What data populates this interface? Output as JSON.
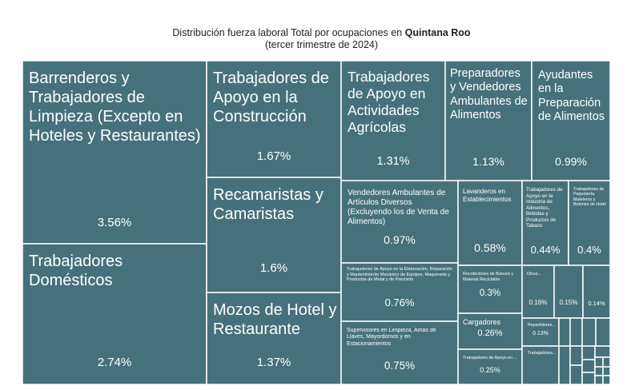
{
  "title": {
    "prefix": "Distribución fuerza laboral Total por ocupaciones en ",
    "location": "Quintana Roo",
    "subtitle": "(tercer trimestre de 2024)"
  },
  "chart_data": {
    "type": "treemap",
    "color": "#46717c",
    "unit": "%",
    "items": [
      {
        "id": "barrenderos",
        "label": "Barrenderos y Trabajadores de Limpieza (Excepto en Hoteles y Restaurantes)",
        "value": 3.56,
        "value_text": "3.56%"
      },
      {
        "id": "domesticos",
        "label": "Trabajadores Domésticos",
        "value": 2.74,
        "value_text": "2.74%"
      },
      {
        "id": "construccion",
        "label": "Trabajadores de Apoyo en la Construcción",
        "value": 1.67,
        "value_text": "1.67%"
      },
      {
        "id": "recamaristas",
        "label": "Recamaristas y Camaristas",
        "value": 1.6,
        "value_text": "1.6%"
      },
      {
        "id": "mozos",
        "label": "Mozos de Hotel y Restaurante",
        "value": 1.37,
        "value_text": "1.37%"
      },
      {
        "id": "agricolas",
        "label": "Trabajadores de Apoyo en Actividades Agrícolas",
        "value": 1.31,
        "value_text": "1.31%"
      },
      {
        "id": "preparadores",
        "label": "Preparadores y Vendedores Ambulantes de Alimentos",
        "value": 1.13,
        "value_text": "1.13%"
      },
      {
        "id": "ayudantes",
        "label": "Ayudantes en la Preparación de Alimentos",
        "value": 0.99,
        "value_text": "0.99%"
      },
      {
        "id": "vendedores",
        "label": "Vendedores Ambulantes de Artículos Diversos (Excluyendo los de Venta de Alimentos)",
        "value": 0.97,
        "value_text": "0.97%"
      },
      {
        "id": "lavanderos",
        "label": "Lavanderos en Establecimientos",
        "value": 0.58,
        "value_text": "0.58%"
      },
      {
        "id": "industria_alimentos",
        "label": "Trabajadores de Apoyo en la Industria de Alimentos, Bebidas y Productos de Tabaco",
        "value": 0.44,
        "value_text": "0.44%"
      },
      {
        "id": "paqueteria",
        "label": "Trabajadores de Paquetería, Maleteros y Botones de Hotel",
        "value": 0.4,
        "value_text": "0.4%"
      },
      {
        "id": "elaboracion",
        "label": "Trabajadores de Apoyo en la Elaboración, Reparación y Mantenimiento Mecánico de Equipos, Maquinaria y Productos de Metal y de Precisión",
        "value": 0.76,
        "value_text": "0.76%"
      },
      {
        "id": "supervisores",
        "label": "Supervisores en Limpieza, Amas de Llaves, Mayordomos y en Estacionamientos",
        "value": 0.75,
        "value_text": "0.75%"
      },
      {
        "id": "recolectores",
        "label": "Recolectores de Basura y Material Reciclable",
        "value": 0.3,
        "value_text": "0.3%"
      },
      {
        "id": "cargadores",
        "label": "Cargadores",
        "value": 0.26,
        "value_text": "0.26%"
      },
      {
        "id": "apoyo_en",
        "label": "Trabajadores de Apoyo en ...",
        "value": 0.25,
        "value_text": "0.25%"
      },
      {
        "id": "otros",
        "label": "Otros...",
        "value": 0.16,
        "value_text": "0.16%"
      },
      {
        "id": "s015",
        "label": "",
        "value": 0.15,
        "value_text": "0.15%"
      },
      {
        "id": "s014",
        "label": "",
        "value": 0.14,
        "value_text": "0.14%"
      },
      {
        "id": "repartidores",
        "label": "Repartidores...",
        "value": 0.13,
        "value_text": "0.13%"
      },
      {
        "id": "trabajadores_small",
        "label": "Trabajadores...",
        "value": null,
        "value_text": ""
      }
    ]
  }
}
